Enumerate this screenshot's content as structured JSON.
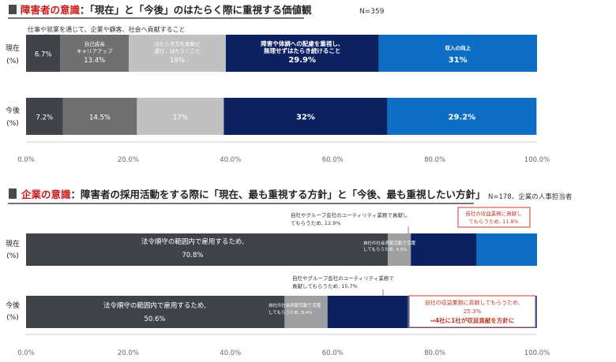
{
  "chart_data": [
    {
      "type": "bar",
      "stacked": "horizontal-100%",
      "title_accent": "障害者の意識",
      "title_rest": "：「現在」と「今後」のはたらく際に重視する価値観",
      "sample_note": "N=359",
      "top_note": "仕事や就業を通じて、企業や顧客、社会へ貢献すること",
      "categories": [
        "現在\n(%)",
        "今後\n(%)"
      ],
      "series": [
        {
          "name": "",
          "color": "#3f4448",
          "values": [
            6.7,
            7.2
          ],
          "labels": [
            "6.7%",
            "7.2%"
          ]
        },
        {
          "name": "自己成長\nキャリアアップ",
          "color": "#6e7072",
          "values": [
            13.4,
            14.5
          ],
          "labels": [
            "13.4%",
            "14.5%"
          ]
        },
        {
          "name": "はたらき方を柔軟に\n選び、はたらくこと",
          "color": "#bfc1c3",
          "values": [
            19,
            17
          ],
          "labels": [
            "19%",
            "17%"
          ]
        },
        {
          "name": "障害や体調への配慮を重視し、\n無理せずはたらき続けること",
          "color": "#0b2160",
          "values": [
            29.9,
            32
          ],
          "labels": [
            "29.9%",
            "32%"
          ]
        },
        {
          "name": "収入の向上",
          "color": "#0d6ec4",
          "values": [
            31,
            29.2
          ],
          "labels": [
            "31%",
            "29.2%"
          ]
        }
      ],
      "xlim": [
        0,
        100
      ],
      "xticks": [
        "0.0%",
        "20.0%",
        "40.0%",
        "60.0%",
        "80.0%",
        "100.0%"
      ],
      "grid": false
    },
    {
      "type": "bar",
      "stacked": "horizontal-100%",
      "title_accent": "企業の意識",
      "title_rest": "：障害者の採用活動をする際に「現在、最も重視する方針」と「今後、最も重視したい方針」",
      "sample_note": "N=178、企業の人事担当者",
      "categories": [
        "現在\n(%)",
        "今後\n(%)"
      ],
      "series": [
        {
          "name": "法令順守の範囲内で雇用するため,",
          "color": "#3f4448",
          "values": [
            70.8,
            50.6
          ]
        },
        {
          "name": "自社の社会貢献活動で活躍\nしてもらうため,",
          "color": "#9d9fa1",
          "values": [
            4.5,
            8.4
          ]
        },
        {
          "name": "自社やグループ会社のユーティリティ業務で貢献し\nてもらうため,",
          "color": "#0b2160",
          "values": [
            12.9,
            15.7
          ]
        },
        {
          "name": "自社の収益業務に貢献し\nてもらうため,",
          "color": "#0d6ec4",
          "values": [
            11.8,
            25.3
          ]
        }
      ],
      "label_texts": {
        "now": {
          "legal": [
            "法令順守の範囲内で雇用するため,",
            "70.8%"
          ],
          "social": [
            "自社の社会貢献活動で活躍",
            "してもらうため, 4.5%"
          ],
          "utility": [
            "自社やグループ会社のユーティリティ業務で貢献し",
            "てもらうため, 12.9%"
          ],
          "profit": [
            "自社の収益業務に貢献し",
            "てもらうため, 11.8%"
          ]
        },
        "future": {
          "legal": [
            "法令順守の範囲内で雇用するため,",
            "50.6%"
          ],
          "social": [
            "自社の社会貢献活動で活躍",
            "してもらうため, 8.4%"
          ],
          "utility": [
            "自社やグループ会社のユーティリティ業務で",
            "貢献してもらうため, 15.7%"
          ],
          "profit": [
            "自社の収益業務に貢献してもらうため,",
            "25.3%",
            "⇒4社に1社が収益貢献を方針に"
          ]
        }
      },
      "xlim": [
        0,
        100
      ],
      "xticks": [
        "0.0%",
        "20.0%",
        "40.0%",
        "60.0%",
        "80.0%",
        "100.0%"
      ],
      "grid": false
    }
  ],
  "colors": {
    "accent_red": "#c81a1a",
    "title_square": "#4a4a4a",
    "callout_border": "#c0392b"
  }
}
